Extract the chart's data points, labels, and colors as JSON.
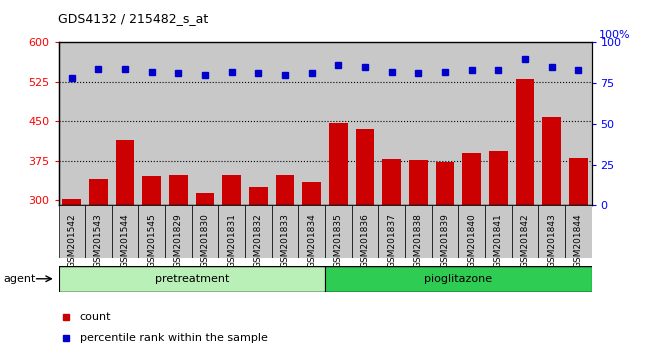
{
  "title": "GDS4132 / 215482_s_at",
  "samples": [
    "GSM201542",
    "GSM201543",
    "GSM201544",
    "GSM201545",
    "GSM201829",
    "GSM201830",
    "GSM201831",
    "GSM201832",
    "GSM201833",
    "GSM201834",
    "GSM201835",
    "GSM201836",
    "GSM201837",
    "GSM201838",
    "GSM201839",
    "GSM201840",
    "GSM201841",
    "GSM201842",
    "GSM201843",
    "GSM201844"
  ],
  "counts": [
    302,
    340,
    415,
    345,
    348,
    313,
    348,
    325,
    347,
    335,
    447,
    435,
    378,
    376,
    372,
    390,
    393,
    530,
    458,
    380
  ],
  "percentile_ranks": [
    78,
    84,
    84,
    82,
    81,
    80,
    82,
    81,
    80,
    81,
    86,
    85,
    82,
    81,
    82,
    83,
    83,
    90,
    85,
    83
  ],
  "bar_color": "#cc0000",
  "dot_color": "#0000cc",
  "ylim_left": [
    290,
    600
  ],
  "ylim_right": [
    0,
    100
  ],
  "yticks_left": [
    300,
    375,
    450,
    525,
    600
  ],
  "yticks_right": [
    0,
    25,
    50,
    75,
    100
  ],
  "hlines": [
    375,
    450,
    525
  ],
  "pretreatment_color": "#b8f0b8",
  "pioglitazone_color": "#2ecc52",
  "background_color": "#c8c8c8",
  "n_pretreatment": 10,
  "n_pioglitazone": 10
}
